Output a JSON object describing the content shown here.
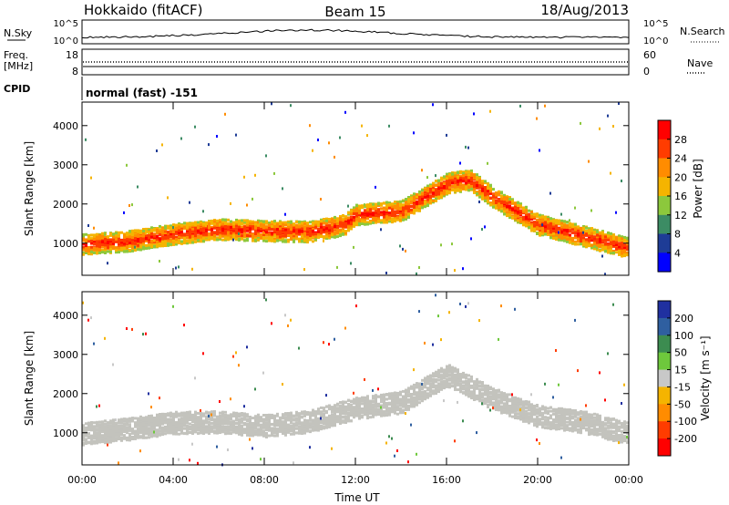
{
  "header": {
    "station": "Hokkaido (fitACF)",
    "beam": "Beam 15",
    "date": "18/Aug/2013"
  },
  "noise_panel": {
    "left_label": "N.Sky",
    "right_label": "N.Search",
    "y_ticks": [
      "10^5",
      "10^0"
    ]
  },
  "freq_panel": {
    "left_label_line1": "Freq.",
    "left_label_line2": "[MHz]",
    "left_ticks": [
      "18",
      "8"
    ],
    "right_label": "Nave",
    "right_ticks": [
      "60",
      "0"
    ]
  },
  "cpid": {
    "label": "CPID",
    "mode": "normal (fast) -151"
  },
  "power_panel": {
    "ylabel": "Slant Range [km]",
    "colorbar_label": "Power [dB]",
    "colorbar_ticks": [
      "28",
      "24",
      "20",
      "16",
      "12",
      "8",
      "4"
    ],
    "colorbar_colors": [
      "#ff0000",
      "#ff3c00",
      "#ff8c00",
      "#f5b400",
      "#8cc83c",
      "#3c8c64",
      "#1e3c96",
      "#0000ff"
    ]
  },
  "velocity_panel": {
    "ylabel": "Slant Range [km]",
    "colorbar_label": "Velocity [m s⁻¹]",
    "colorbar_ticks": [
      "200",
      "100",
      "50",
      "15",
      "-15",
      "-50",
      "-100",
      "-200"
    ],
    "colorbar_colors": [
      "#2030a0",
      "#2f5fa0",
      "#3c8c50",
      "#6ec83c",
      "#c8c8c8",
      "#f5b400",
      "#ff8c00",
      "#ff3c00",
      "#ff0000"
    ],
    "ground_scatter_color": "#c3c3bd"
  },
  "xaxis": {
    "label": "Time UT",
    "ticks": [
      "00:00",
      "04:00",
      "08:00",
      "12:00",
      "16:00",
      "20:00",
      "00:00"
    ]
  },
  "chart_data": {
    "type": "heatmap",
    "x_ticks": [
      "00:00",
      "04:00",
      "08:00",
      "12:00",
      "16:00",
      "20:00",
      "00:00"
    ],
    "x_range_hours": [
      0,
      24
    ],
    "y_range_km": [
      180,
      4600
    ],
    "y_ticks": [
      1000,
      2000,
      3000,
      4000
    ],
    "power_scale_db": [
      0,
      30
    ],
    "velocity_scale": [
      -200,
      200
    ],
    "power_main_band": {
      "hours": [
        0,
        2,
        4,
        6,
        8,
        10,
        11.5,
        12,
        14,
        16,
        17,
        18,
        20,
        22,
        24
      ],
      "range_km": [
        1000,
        1080,
        1260,
        1380,
        1340,
        1320,
        1500,
        1750,
        1850,
        2550,
        2650,
        2200,
        1500,
        1200,
        900
      ]
    },
    "velocity_ground_scatter_band": {
      "hours": [
        0,
        2,
        4,
        6,
        8,
        10,
        12,
        14,
        16,
        18,
        20,
        22,
        24
      ],
      "range_km": [
        1000,
        1120,
        1280,
        1300,
        1200,
        1320,
        1650,
        1800,
        2500,
        1900,
        1450,
        1300,
        1000
      ]
    }
  }
}
